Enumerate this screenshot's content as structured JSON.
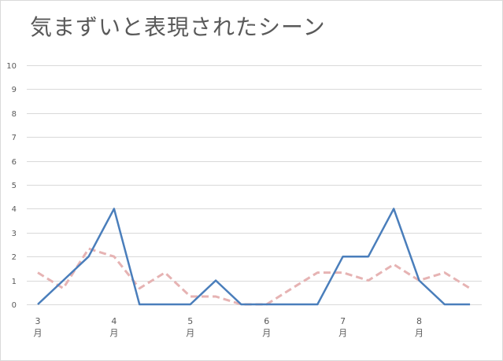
{
  "title": "気まずいと表現されたシーン",
  "colors": {
    "series_solid": "#4a7ebb",
    "series_dashed": "#e6b3b3",
    "grid": "#d9d9d9",
    "text": "#595959"
  },
  "chart_data": {
    "type": "line",
    "title": "気まずいと表現されたシーン",
    "xlabel": "",
    "ylabel": "",
    "ylim": [
      0,
      10
    ],
    "y_ticks": [
      0,
      1,
      2,
      3,
      4,
      5,
      6,
      7,
      8,
      9,
      10
    ],
    "grid": true,
    "legend": null,
    "x": [
      0,
      1,
      2,
      3,
      4,
      5,
      6,
      7,
      8,
      9,
      10,
      11,
      12,
      13,
      14,
      15,
      16,
      17
    ],
    "x_tick_labels": [
      {
        "index": 0,
        "number": "3",
        "unit": "月"
      },
      {
        "index": 3,
        "number": "4",
        "unit": "月"
      },
      {
        "index": 6,
        "number": "5",
        "unit": "月"
      },
      {
        "index": 9,
        "number": "6",
        "unit": "月"
      },
      {
        "index": 12,
        "number": "7",
        "unit": "月"
      },
      {
        "index": 15,
        "number": "8",
        "unit": "月"
      }
    ],
    "series": [
      {
        "name": "solid-blue",
        "style": "solid",
        "values": [
          0,
          1,
          2,
          4,
          0,
          0,
          0,
          1,
          0,
          0,
          0,
          0,
          2,
          2,
          4,
          1,
          0,
          0
        ]
      },
      {
        "name": "dashed-pink",
        "style": "dashed",
        "values": [
          1.33,
          0.67,
          2.33,
          2,
          0.67,
          1.33,
          0.33,
          0.33,
          0,
          0,
          0.67,
          1.33,
          1.33,
          1,
          1.67,
          1,
          1.33,
          0.67
        ]
      }
    ]
  }
}
